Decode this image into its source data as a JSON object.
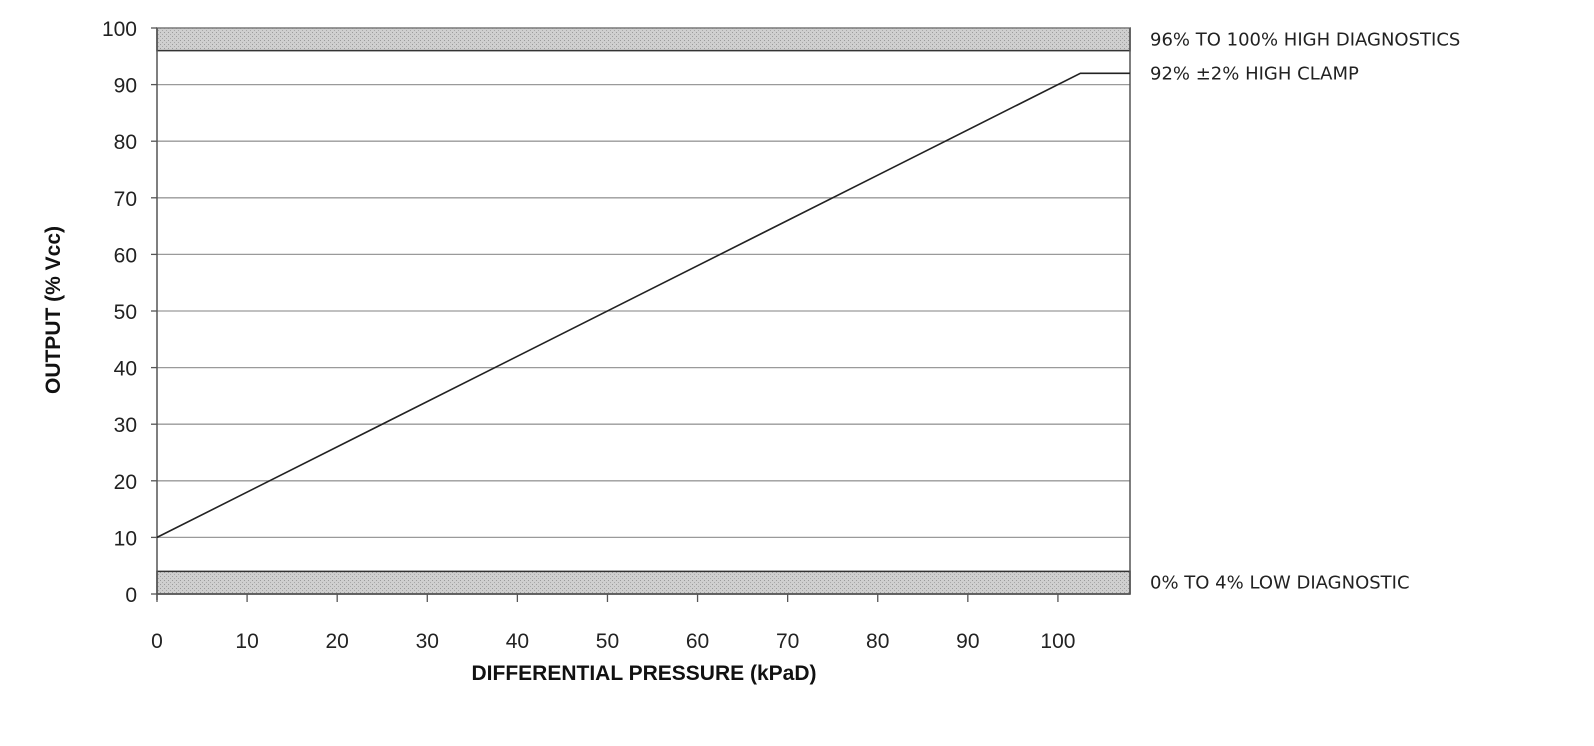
{
  "chart_data": {
    "type": "line",
    "xlabel": "DIFFERENTIAL PRESSURE (kPaD)",
    "ylabel": "OUTPUT (% Vcc)",
    "xlim": [
      0,
      108
    ],
    "ylim": [
      0,
      100
    ],
    "xticks": [
      0,
      10,
      20,
      30,
      40,
      50,
      60,
      70,
      80,
      90,
      100
    ],
    "yticks": [
      0,
      10,
      20,
      30,
      40,
      50,
      60,
      70,
      80,
      90,
      100
    ],
    "grid": "horizontal",
    "series": [
      {
        "x": [
          0,
          102.5,
          108
        ],
        "y": [
          10,
          92,
          92
        ]
      }
    ],
    "bands": [
      {
        "y": [
          96,
          100
        ],
        "label": "96% TO 100% HIGH DIAGNOSTICS"
      },
      {
        "y": [
          0,
          4
        ],
        "label": "0% TO 4% LOW DIAGNOSTIC"
      }
    ],
    "annotations": [
      {
        "y": 92,
        "label": "92% ±2% HIGH CLAMP"
      }
    ],
    "colors": {
      "line": "#222222",
      "grid": "#9a9a9a",
      "band_fill": "#c8c8c8",
      "axis": "#555555"
    }
  }
}
